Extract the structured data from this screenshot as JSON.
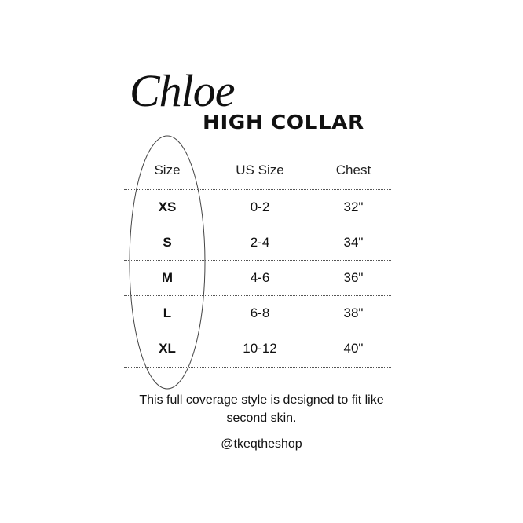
{
  "brand": "Chloe",
  "subtitle": "HIGH COLLAR",
  "table": {
    "headers": [
      "Size",
      "US Size",
      "Chest"
    ],
    "rows": [
      [
        "XS",
        "0-2",
        "32\""
      ],
      [
        "S",
        "2-4",
        "34\""
      ],
      [
        "M",
        "4-6",
        "36\""
      ],
      [
        "L",
        "6-8",
        "38\""
      ],
      [
        "XL",
        "10-12",
        "40\""
      ]
    ]
  },
  "note": "This full coverage style is designed to fit like second skin.",
  "handle": "@tkeqtheshop"
}
